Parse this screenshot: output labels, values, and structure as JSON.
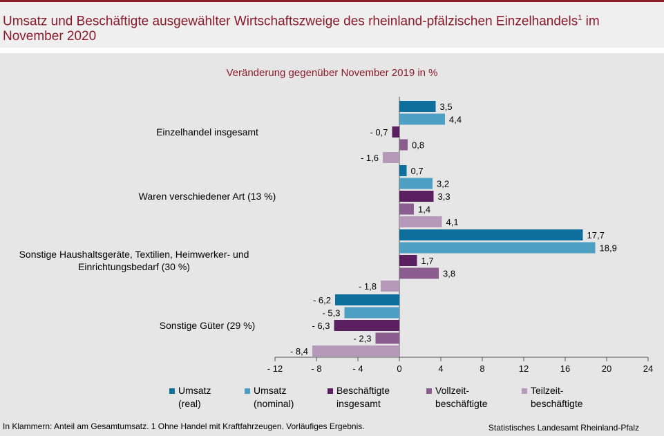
{
  "title_main": "Umsatz und Beschäftigte ausgewählter Wirtschaftszweige des rheinland-pfälzischen Einzelhandels",
  "title_sup": "1",
  "title_end": " im November 2020",
  "subtitle": "Veränderung gegenüber November 2019 in %",
  "footnote": "In Klammern: Anteil am Gesamtumsatz. 1 Ohne Handel mit Kraftfahrzeugen. Vorläufiges Ergebnis.",
  "source": "Statistisches Landesamt Rheinland-Pfalz",
  "chart_data": {
    "type": "bar",
    "orientation": "horizontal",
    "categories": [
      [
        "Einzelhandel insgesamt"
      ],
      [
        "Waren verschiedener Art (13 %)"
      ],
      [
        "Sonstige Haushaltsgeräte, Textilien, Heimwerker- und",
        "Einrichtungsbedarf (30 %)"
      ],
      [
        "Sonstige Güter (29 %)"
      ]
    ],
    "series": [
      {
        "name": "Umsatz\n(real)",
        "color": "#0e6e9c",
        "values": [
          3.5,
          0.7,
          17.7,
          -6.2
        ],
        "labels": [
          "3,5",
          "0,7",
          "17,7",
          "- 6,2"
        ]
      },
      {
        "name": "Umsatz\n(nominal)",
        "color": "#4d9fc4",
        "values": [
          4.4,
          3.2,
          18.9,
          -5.3
        ],
        "labels": [
          "4,4",
          "3,2",
          "18,9",
          "- 5,3"
        ]
      },
      {
        "name": "Beschäftigte\ninsgesamt",
        "color": "#5a1f5e",
        "values": [
          -0.7,
          3.3,
          1.7,
          -6.3
        ],
        "labels": [
          "- 0,7",
          "3,3",
          "1,7",
          "- 6,3"
        ]
      },
      {
        "name": "Vollzeit-\nbeschäftigte",
        "color": "#8a5d8e",
        "values": [
          0.8,
          1.4,
          3.8,
          -2.3
        ],
        "labels": [
          "0,8",
          "1,4",
          "3,8",
          "- 2,3"
        ]
      },
      {
        "name": "Teilzeit-\nbeschäftigte",
        "color": "#b698b9",
        "values": [
          -1.6,
          4.1,
          -1.8,
          -8.4
        ],
        "labels": [
          "- 1,6",
          "4,1",
          "- 1,8",
          "- 8,4"
        ]
      }
    ],
    "xlim": [
      -12,
      24
    ],
    "xticks": [
      -12,
      -8,
      -4,
      0,
      4,
      8,
      12,
      16,
      20,
      24
    ],
    "xtick_labels": [
      "- 12",
      "- 8",
      "- 4",
      "0",
      "4",
      "8",
      "12",
      "16",
      "20",
      "24"
    ],
    "grid": false,
    "legend_position": "bottom"
  }
}
